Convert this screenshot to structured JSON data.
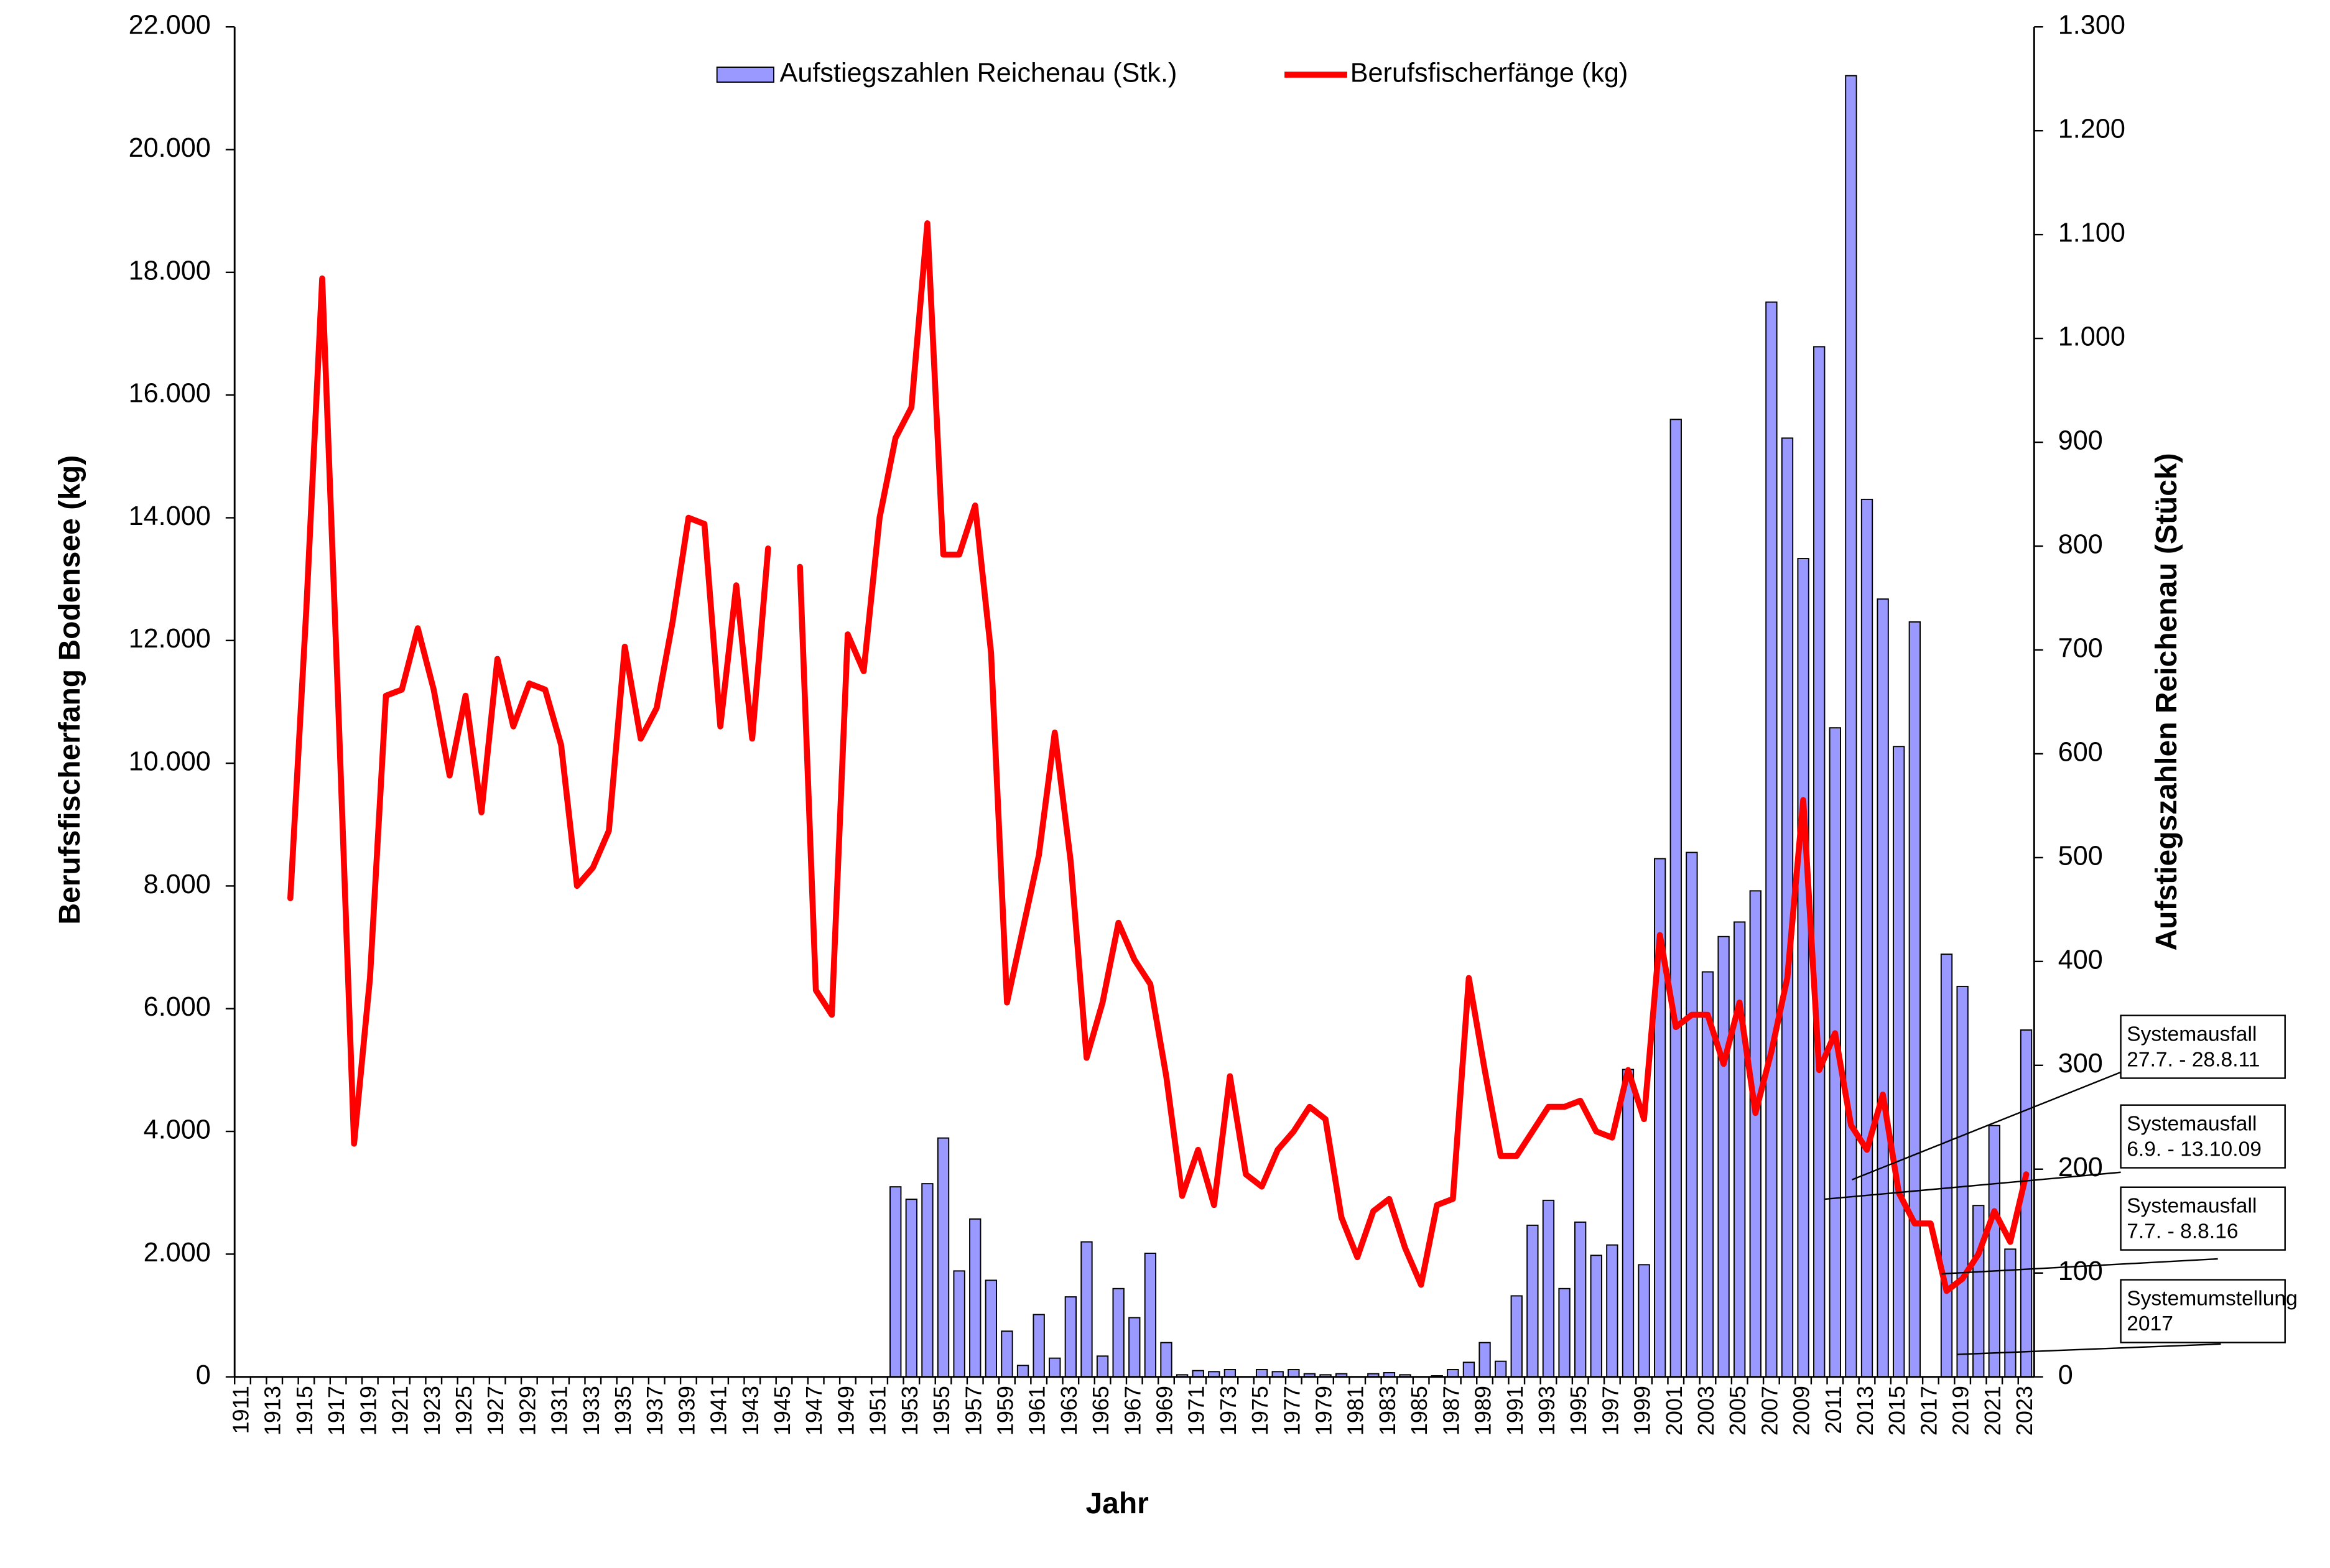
{
  "chart_data": {
    "type": "bar",
    "x_label": "Jahr",
    "y_label": "Berufsfischerfang Bodensee (kg)",
    "y2_label": "Aufstiegszahlen Reichenau (Stück)",
    "legend": "upper center",
    "categories": [
      "1911",
      null,
      "1913",
      null,
      "1915",
      null,
      "1917",
      null,
      "1919",
      null,
      "1921",
      null,
      "1923",
      null,
      "1925",
      null,
      "1927",
      null,
      "1929",
      null,
      "1931",
      null,
      "1933",
      null,
      "1935",
      null,
      "1937",
      null,
      "1939",
      null,
      "1941",
      null,
      "1943",
      null,
      "1945",
      null,
      "1947",
      null,
      "1949",
      null,
      "1951",
      null,
      "1953",
      null,
      "1955",
      null,
      "1957",
      null,
      "1959",
      null,
      "1961",
      null,
      "1963",
      null,
      "1965",
      null,
      "1967",
      null,
      "1969",
      null,
      "1971",
      null,
      "1973",
      null,
      "1975",
      null,
      "1977",
      null,
      "1979",
      null,
      "1981",
      null,
      "1983",
      null,
      "1985",
      null,
      "1987",
      null,
      "1989",
      null,
      "1991",
      null,
      "1993",
      null,
      "1995",
      null,
      "1997",
      null,
      "1999",
      null,
      "2001",
      null,
      "2003",
      null,
      "2005",
      null,
      "2007",
      null,
      "2009",
      null,
      "2011",
      null,
      "2013",
      null,
      "2015",
      null,
      "2017",
      null,
      "2019",
      null,
      "2021",
      null,
      "2023"
    ],
    "series": [
      {
        "name": "Aufstiegszahlen Reichenau (Stk.)",
        "type": "bar",
        "axis": "y2",
        "color": "#9999ff",
        "values": [
          null,
          null,
          null,
          null,
          null,
          null,
          null,
          null,
          null,
          null,
          null,
          null,
          null,
          null,
          null,
          null,
          null,
          null,
          null,
          null,
          null,
          null,
          null,
          null,
          null,
          null,
          null,
          null,
          null,
          null,
          null,
          null,
          null,
          null,
          null,
          null,
          null,
          null,
          null,
          null,
          null,
          183,
          171,
          186,
          230,
          102,
          152,
          93,
          44,
          11,
          60,
          18,
          77,
          130,
          20,
          85,
          57,
          119,
          33,
          2,
          6,
          5,
          7,
          0,
          7,
          5,
          7,
          3,
          2,
          3,
          0,
          3,
          4,
          2,
          0,
          1,
          7,
          14,
          33,
          15,
          78,
          146,
          170,
          85,
          149,
          117,
          127,
          296,
          108,
          499,
          922,
          505,
          390,
          424,
          438,
          468,
          1035,
          904,
          788,
          992,
          625,
          1253,
          845,
          749,
          607,
          727,
          null,
          407,
          376,
          165,
          242,
          123,
          334
        ]
      },
      {
        "name": "Berufsfischerfänge (kg)",
        "type": "line",
        "color": "#ff0000",
        "values": [
          null,
          null,
          null,
          7800,
          12500,
          17900,
          11000,
          3800,
          6500,
          11100,
          11200,
          12200,
          11200,
          9800,
          11100,
          9200,
          11700,
          10600,
          11300,
          11200,
          10300,
          8000,
          8300,
          8900,
          11900,
          10400,
          10900,
          12300,
          14000,
          13900,
          10600,
          12900,
          10400,
          13500,
          null,
          13200,
          6300,
          5900,
          12100,
          11500,
          14000,
          15300,
          15800,
          18800,
          13400,
          13400,
          14200,
          11800,
          6100,
          7300,
          8500,
          10500,
          8400,
          5200,
          6100,
          7400,
          6800,
          6400,
          4900,
          2950,
          3700,
          2800,
          4900,
          3300,
          3100,
          3700,
          4000,
          4400,
          4200,
          2600,
          1950,
          2700,
          2900,
          2100,
          1500,
          2800,
          2900,
          6500,
          5000,
          3600,
          3600,
          4000,
          4400,
          4400,
          4500,
          4000,
          3900,
          5000,
          4200,
          7200,
          5700,
          5900,
          5900,
          5100,
          6100,
          4300,
          5300,
          6500,
          9400,
          5000,
          5600,
          4100,
          3700,
          4600,
          3000,
          2500,
          2500,
          1400,
          1600,
          2000,
          2700,
          2200,
          3300
        ]
      }
    ],
    "ylim": [
      0,
      22000
    ],
    "yticks": [
      0,
      {
        "value": 2000,
        "label": "2.000"
      },
      {
        "value": 4000,
        "label": "4.000"
      },
      {
        "value": 6000,
        "label": "6.000"
      },
      {
        "value": 8000,
        "label": "8.000"
      },
      {
        "value": 10000,
        "label": "10.000"
      },
      {
        "value": 12000,
        "label": "12.000"
      },
      {
        "value": 14000,
        "label": "14.000"
      },
      {
        "value": 16000,
        "label": "16.000"
      },
      {
        "value": 18000,
        "label": "18.000"
      },
      {
        "value": 20000,
        "label": "20.000"
      },
      {
        "value": 22000,
        "label": "22.000"
      }
    ],
    "y2lim": [
      0,
      1300
    ],
    "y2ticks": [
      0,
      100,
      200,
      300,
      400,
      500,
      600,
      700,
      800,
      900,
      {
        "value": 1000,
        "label": "1.000"
      },
      {
        "value": 1100,
        "label": "1.100"
      },
      {
        "value": 1200,
        "label": "1.200"
      },
      {
        "value": 1300,
        "label": "1.300"
      }
    ],
    "annotations": [
      {
        "lines": [
          "Systemausfall",
          "27.7. - 28.8.11"
        ]
      },
      {
        "lines": [
          "Systemausfall",
          "6.9. - 13.10.09"
        ]
      },
      {
        "lines": [
          "Systemausfall",
          "7.7. - 8.8.16"
        ]
      },
      {
        "lines": [
          "Systemumstellung",
          "2017"
        ]
      }
    ]
  }
}
